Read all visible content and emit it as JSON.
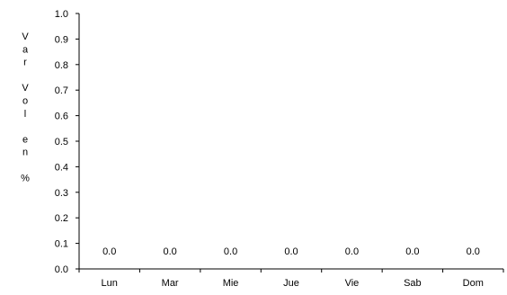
{
  "chart_data": {
    "type": "bar",
    "title": "",
    "xlabel": "",
    "ylabel": "Var Vol en %",
    "ylabel_lines": [
      "V",
      "a",
      "r",
      "",
      "V",
      "o",
      "l",
      "",
      "e",
      "n",
      "",
      "%"
    ],
    "categories": [
      "Lun",
      "Mar",
      "Mie",
      "Jue",
      "Vie",
      "Sab",
      "Dom"
    ],
    "values": [
      0.0,
      0.0,
      0.0,
      0.0,
      0.0,
      0.0,
      0.0
    ],
    "data_labels": [
      "0.0",
      "0.0",
      "0.0",
      "0.0",
      "0.0",
      "0.0",
      "0.0"
    ],
    "ylim": [
      0,
      1.0
    ],
    "yticks": [
      "0.0",
      "0.1",
      "0.2",
      "0.3",
      "0.4",
      "0.5",
      "0.6",
      "0.7",
      "0.8",
      "0.9",
      "1.0"
    ],
    "grid": false,
    "legend": "none",
    "colors": {
      "axis": "#000000",
      "text": "#000000",
      "bar": "#4f81bd"
    }
  }
}
